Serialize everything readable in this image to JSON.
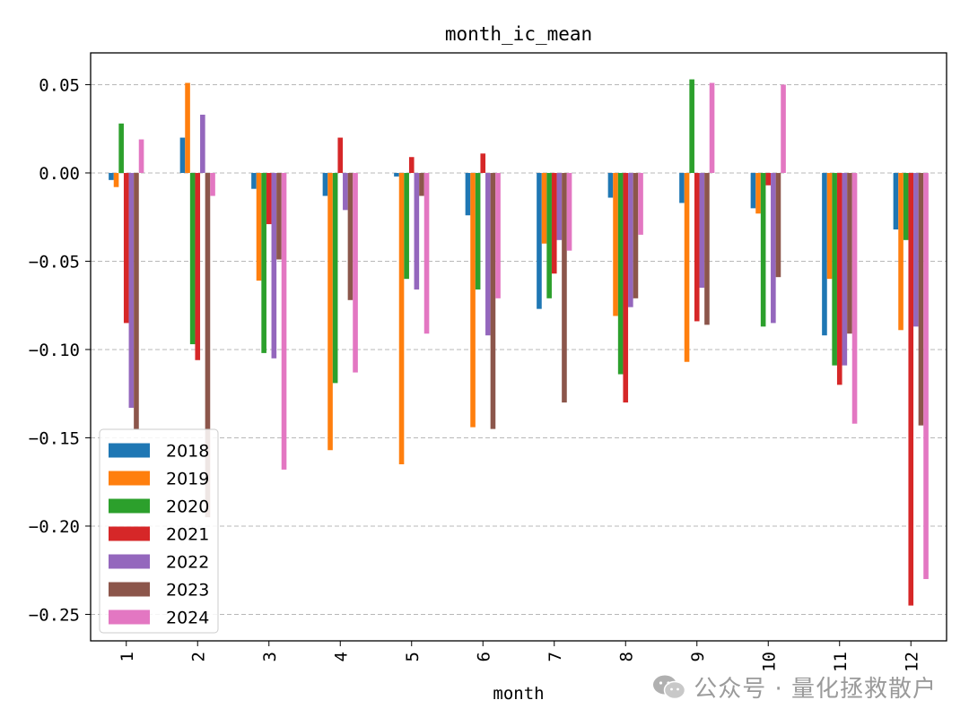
{
  "chart_data": {
    "type": "bar",
    "title": "month_ic_mean",
    "xlabel": "month",
    "ylabel": "",
    "ylim": [
      -0.265,
      0.068
    ],
    "yticks": [
      0.05,
      0.0,
      -0.05,
      -0.1,
      -0.15,
      -0.2,
      -0.25
    ],
    "ytick_labels": [
      "0.05",
      "0.00",
      "−0.05",
      "−0.10",
      "−0.15",
      "−0.20",
      "−0.25"
    ],
    "grid": "y-dashed",
    "legend_position": "lower-left",
    "categories": [
      "1",
      "2",
      "3",
      "4",
      "5",
      "6",
      "7",
      "8",
      "9",
      "10",
      "11",
      "12"
    ],
    "series": [
      {
        "name": "2018",
        "color": "#1f77b4",
        "values": [
          -0.004,
          0.02,
          -0.009,
          -0.013,
          -0.002,
          -0.024,
          -0.077,
          -0.014,
          -0.017,
          -0.02,
          -0.092,
          -0.032
        ]
      },
      {
        "name": "2019",
        "color": "#ff7f0e",
        "values": [
          -0.008,
          0.051,
          -0.061,
          -0.157,
          -0.165,
          -0.144,
          -0.04,
          -0.081,
          -0.107,
          -0.023,
          -0.06,
          -0.089
        ]
      },
      {
        "name": "2020",
        "color": "#2ca02c",
        "values": [
          0.028,
          -0.097,
          -0.102,
          -0.119,
          -0.06,
          -0.066,
          -0.071,
          -0.114,
          0.053,
          -0.087,
          -0.109,
          -0.038
        ]
      },
      {
        "name": "2021",
        "color": "#d62728",
        "values": [
          -0.085,
          -0.106,
          -0.029,
          0.02,
          0.009,
          0.011,
          -0.057,
          -0.13,
          -0.084,
          -0.007,
          -0.12,
          -0.245
        ]
      },
      {
        "name": "2022",
        "color": "#9467bd",
        "values": [
          -0.133,
          0.033,
          -0.105,
          -0.021,
          -0.066,
          -0.092,
          -0.038,
          -0.076,
          -0.065,
          -0.085,
          -0.109,
          -0.087
        ]
      },
      {
        "name": "2023",
        "color": "#8c564b",
        "values": [
          -0.145,
          -0.195,
          -0.049,
          -0.072,
          -0.013,
          -0.145,
          -0.13,
          -0.071,
          -0.086,
          -0.059,
          -0.091,
          -0.143
        ]
      },
      {
        "name": "2024",
        "color": "#e377c2",
        "values": [
          0.019,
          -0.013,
          -0.168,
          -0.113,
          -0.091,
          -0.071,
          -0.044,
          -0.035,
          0.051,
          0.05,
          -0.142,
          -0.23
        ]
      }
    ]
  },
  "watermark": {
    "text": "公众号 · 量化拯救散户",
    "icon": "wechat-icon"
  }
}
